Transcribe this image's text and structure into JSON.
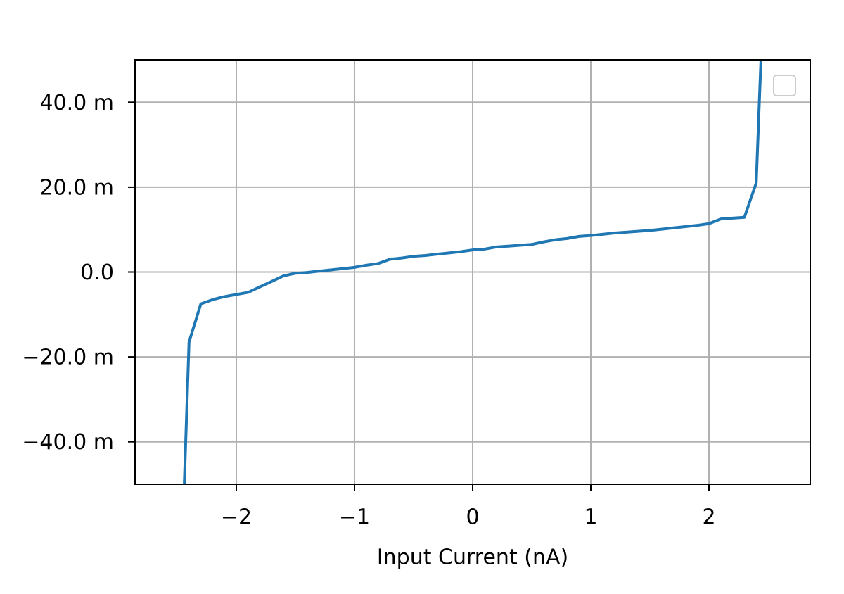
{
  "chart_data": {
    "type": "line",
    "x_label": "Input Current (nA)",
    "x": [
      -2.44,
      -2.4,
      -2.3,
      -2.2,
      -2.1,
      -2.0,
      -1.9,
      -1.8,
      -1.7,
      -1.6,
      -1.5,
      -1.4,
      -1.3,
      -1.2,
      -1.1,
      -1.0,
      -0.9,
      -0.8,
      -0.7,
      -0.6,
      -0.5,
      -0.4,
      -0.3,
      -0.2,
      -0.1,
      0.0,
      0.1,
      0.2,
      0.3,
      0.4,
      0.5,
      0.6,
      0.7,
      0.8,
      0.9,
      1.0,
      1.1,
      1.2,
      1.3,
      1.4,
      1.5,
      1.6,
      1.7,
      1.8,
      1.9,
      2.0,
      2.1,
      2.2,
      2.3,
      2.4,
      2.44
    ],
    "series": [
      {
        "color": "#1f77b4",
        "values": [
          -0.05,
          -0.0165,
          -0.0075,
          -0.0065,
          -0.0058,
          -0.0053,
          -0.0048,
          -0.0035,
          -0.0022,
          -0.0009,
          -0.0003,
          -0.0001,
          0.0002,
          0.0005,
          0.0008,
          0.0011,
          0.0016,
          0.002,
          0.003,
          0.0033,
          0.0037,
          0.0039,
          0.0042,
          0.0045,
          0.0048,
          0.0052,
          0.0054,
          0.0059,
          0.0061,
          0.0063,
          0.0065,
          0.0071,
          0.0076,
          0.0079,
          0.0084,
          0.0086,
          0.0089,
          0.0092,
          0.0094,
          0.0096,
          0.0098,
          0.0101,
          0.0104,
          0.0107,
          0.011,
          0.0114,
          0.0125,
          0.0127,
          0.0129,
          0.021,
          0.05
        ]
      }
    ],
    "xlim": [
      -2.857,
      2.857
    ],
    "xticks": [
      {
        "value": -2,
        "label": "−2"
      },
      {
        "value": -1,
        "label": "−1"
      },
      0,
      1,
      2
    ],
    "ylim": [
      -0.05,
      0.05
    ],
    "yticks": [
      {
        "value": -0.04,
        "label": "−40.0 m"
      },
      {
        "value": -0.02,
        "label": "−20.0 m"
      },
      {
        "value": 0,
        "label": "0.0"
      },
      {
        "value": 0.02,
        "label": "20.0 m"
      },
      {
        "value": 0.04,
        "label": "40.0 m"
      }
    ],
    "grid": true
  }
}
